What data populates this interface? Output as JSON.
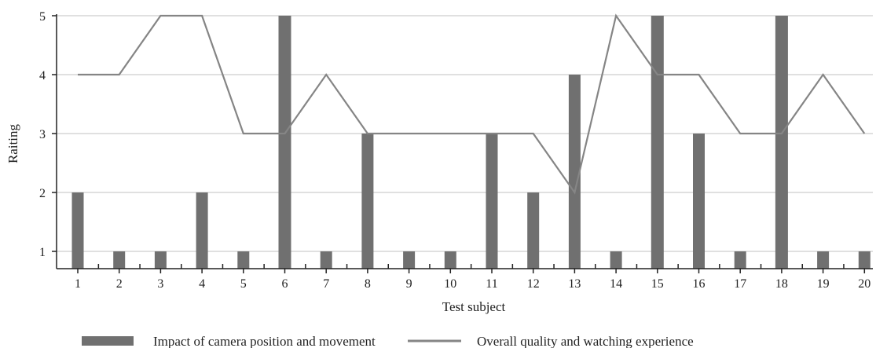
{
  "chart_data": {
    "type": "bar+line",
    "title": "",
    "xlabel": "Test subject",
    "ylabel": "Raiting",
    "ylim": [
      0.7,
      5
    ],
    "yticks": [
      1,
      2,
      3,
      4,
      5
    ],
    "grid": true,
    "legend_position": "bottom",
    "categories": [
      "1",
      "2",
      "3",
      "4",
      "5",
      "6",
      "7",
      "8",
      "9",
      "10",
      "11",
      "12",
      "13",
      "14",
      "15",
      "16",
      "17",
      "18",
      "19",
      "20"
    ],
    "series": [
      {
        "name": "Impact of camera position and movement",
        "type": "bar",
        "color": "#707070",
        "values": [
          2,
          1,
          1,
          2,
          1,
          5,
          1,
          3,
          1,
          1,
          3,
          2,
          4,
          1,
          5,
          3,
          1,
          5,
          1,
          1
        ]
      },
      {
        "name": "Overall quality and watching experience",
        "type": "line",
        "color": "#858585",
        "values": [
          4,
          4,
          5,
          5,
          3,
          3,
          4,
          3,
          3,
          3,
          3,
          3,
          2,
          5,
          4,
          4,
          3,
          3,
          4,
          3
        ]
      }
    ]
  }
}
